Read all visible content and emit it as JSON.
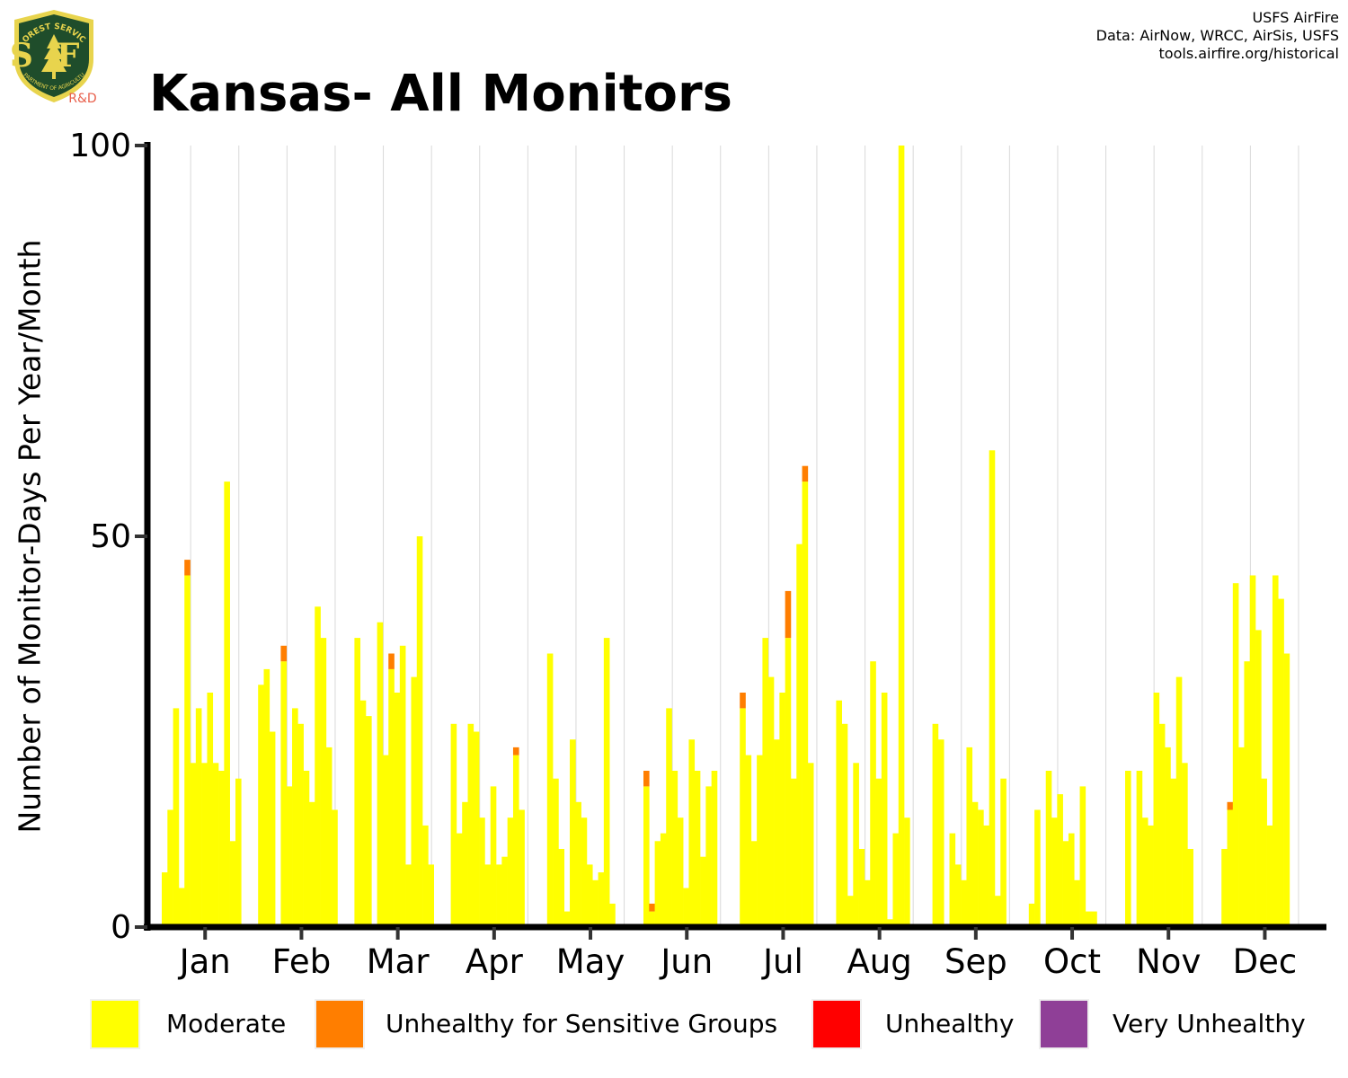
{
  "header": {
    "title": "Kansas- All Monitors",
    "credits": [
      "USFS AirFire",
      "Data: AirNow, WRCC, AirSis, USFS",
      "tools.airfire.org/historical"
    ],
    "logo": {
      "top_text": "FOREST SERVICE",
      "initials": "USFS",
      "bottom_text": "DEPARTMENT OF AGRICULTURE",
      "tag": "R&D"
    }
  },
  "colors": {
    "Moderate": "#ffff00",
    "Unhealthy for Sensitive Groups": "#ff7e00",
    "Unhealthy": "#ff0000",
    "Very Unhealthy": "#8f3f97",
    "grid": "#d9d9d9",
    "logo_green": "#1f4d2b",
    "logo_gold": "#e8d44d",
    "logo_tag": "#e8604c"
  },
  "chart_data": {
    "type": "bar",
    "stacked": true,
    "title": "Kansas- All Monitors",
    "ylabel": "Number of Monitor-Days Per Year/Month",
    "xlabel": "",
    "ylim": [
      0,
      100
    ],
    "yticks": [
      0,
      50,
      100
    ],
    "grid": "vertical",
    "legend_position": "bottom",
    "months": [
      "Jan",
      "Feb",
      "Mar",
      "Apr",
      "May",
      "Jun",
      "Jul",
      "Aug",
      "Sep",
      "Oct",
      "Nov",
      "Dec"
    ],
    "bars_per_month": 17,
    "series": [
      {
        "name": "Moderate",
        "values": [
          [
            7,
            15,
            28,
            5,
            45,
            21,
            28,
            21,
            30,
            21,
            20,
            57,
            11,
            19,
            0,
            0,
            0
          ],
          [
            31,
            33,
            25,
            0,
            34,
            18,
            28,
            26,
            20,
            16,
            41,
            37,
            23,
            15,
            0,
            0,
            0
          ],
          [
            37,
            29,
            27,
            0,
            39,
            22,
            33,
            30,
            36,
            8,
            32,
            50,
            13,
            8,
            0,
            0,
            0
          ],
          [
            26,
            12,
            16,
            26,
            25,
            14,
            8,
            18,
            8,
            9,
            14,
            22,
            15,
            0,
            0,
            0,
            0
          ],
          [
            35,
            19,
            10,
            2,
            24,
            16,
            14,
            8,
            6,
            7,
            37,
            3,
            0,
            0,
            0,
            0,
            0
          ],
          [
            18,
            2,
            11,
            12,
            28,
            20,
            14,
            5,
            24,
            20,
            9,
            18,
            20,
            0,
            0,
            0,
            0
          ],
          [
            28,
            22,
            11,
            22,
            37,
            32,
            24,
            30,
            37,
            19,
            49,
            57,
            21,
            0,
            0,
            0,
            0
          ],
          [
            29,
            26,
            4,
            21,
            10,
            6,
            34,
            19,
            30,
            1,
            12,
            100,
            14,
            0,
            0,
            0,
            0
          ],
          [
            26,
            24,
            0,
            12,
            8,
            6,
            23,
            16,
            15,
            13,
            61,
            4,
            19,
            0,
            0,
            0,
            0
          ],
          [
            3,
            15,
            0,
            20,
            14,
            17,
            11,
            12,
            6,
            18,
            2,
            2,
            0,
            0,
            0,
            0,
            0
          ],
          [
            20,
            0,
            20,
            14,
            13,
            30,
            26,
            23,
            19,
            32,
            21,
            10,
            0,
            0,
            0,
            0,
            0
          ],
          [
            10,
            15,
            44,
            23,
            34,
            45,
            38,
            19,
            13,
            45,
            42,
            35,
            0,
            0,
            0,
            0,
            0
          ]
        ]
      },
      {
        "name": "Unhealthy for Sensitive Groups",
        "values": [
          [
            0,
            0,
            0,
            0,
            2,
            0,
            0,
            0,
            0,
            0,
            0,
            0,
            0,
            0,
            0,
            0,
            0
          ],
          [
            0,
            0,
            0,
            0,
            2,
            0,
            0,
            0,
            0,
            0,
            0,
            0,
            0,
            0,
            0,
            0,
            0
          ],
          [
            0,
            0,
            0,
            0,
            0,
            0,
            2,
            0,
            0,
            0,
            0,
            0,
            0,
            0,
            0,
            0,
            0
          ],
          [
            0,
            0,
            0,
            0,
            0,
            0,
            0,
            0,
            0,
            0,
            0,
            1,
            0,
            0,
            0,
            0,
            0
          ],
          [
            0,
            0,
            0,
            0,
            0,
            0,
            0,
            0,
            0,
            0,
            0,
            0,
            0,
            0,
            0,
            0,
            0
          ],
          [
            2,
            1,
            0,
            0,
            0,
            0,
            0,
            0,
            0,
            0,
            0,
            0,
            0,
            0,
            0,
            0,
            0
          ],
          [
            2,
            0,
            0,
            0,
            0,
            0,
            0,
            0,
            6,
            0,
            0,
            2,
            0,
            0,
            0,
            0,
            0
          ],
          [
            0,
            0,
            0,
            0,
            0,
            0,
            0,
            0,
            0,
            0,
            0,
            0,
            0,
            0,
            0,
            0,
            0
          ],
          [
            0,
            0,
            0,
            0,
            0,
            0,
            0,
            0,
            0,
            0,
            0,
            0,
            0,
            0,
            0,
            0,
            0
          ],
          [
            0,
            0,
            0,
            0,
            0,
            0,
            0,
            0,
            0,
            0,
            0,
            0,
            0,
            0,
            0,
            0,
            0
          ],
          [
            0,
            0,
            0,
            0,
            0,
            0,
            0,
            0,
            0,
            0,
            0,
            0,
            0,
            0,
            0,
            0,
            0
          ],
          [
            0,
            1,
            0,
            0,
            0,
            0,
            0,
            0,
            0,
            0,
            0,
            0,
            0,
            0,
            0,
            0,
            0
          ]
        ]
      },
      {
        "name": "Unhealthy",
        "values": []
      },
      {
        "name": "Very Unhealthy",
        "values": []
      }
    ]
  },
  "legend": {
    "items": [
      {
        "label": "Moderate",
        "color": "#ffff00"
      },
      {
        "label": "Unhealthy for Sensitive Groups",
        "color": "#ff7e00"
      },
      {
        "label": "Unhealthy",
        "color": "#ff0000"
      },
      {
        "label": "Very Unhealthy",
        "color": "#8f3f97"
      }
    ]
  }
}
